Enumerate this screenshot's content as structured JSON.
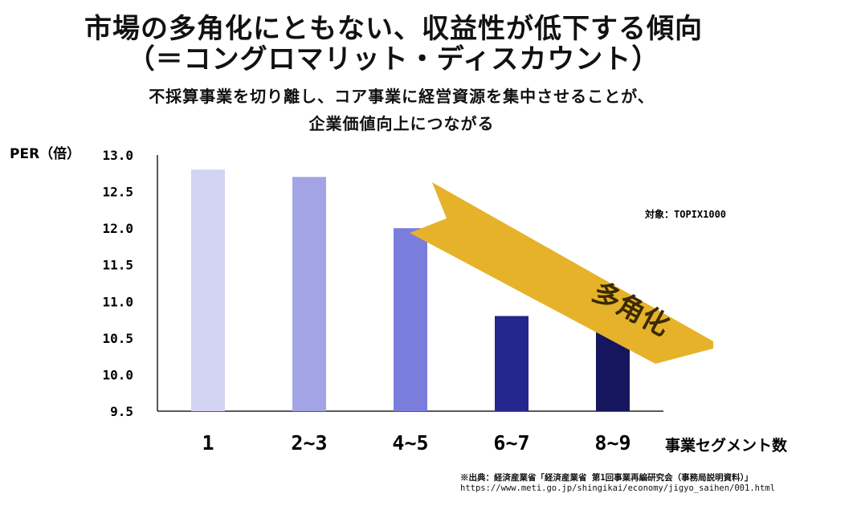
{
  "header": {
    "title_line1": "市場の多角化にともない、収益性が低下する傾向",
    "title_line2": "（＝コングロマリット・ディスカウント）",
    "subtitle_line1": "不採算事業を切り離し、コア事業に経営資源を集中させることが、",
    "subtitle_line2": "企業価値向上につながる"
  },
  "chart_data": {
    "type": "bar",
    "ylabel": "PER（倍）",
    "xlabel": "事業セグメント数",
    "categories": [
      "1",
      "2~3",
      "4~5",
      "6~7",
      "8~9"
    ],
    "values": [
      12.8,
      12.7,
      12.0,
      10.8,
      10.7
    ],
    "ylim": [
      9.5,
      13.0
    ],
    "yticks": [
      "13.0",
      "12.5",
      "12.0",
      "11.5",
      "11.0",
      "10.5",
      "10.0",
      "9.5"
    ],
    "bar_colors": [
      "#d3d3f3",
      "#a3a4e6",
      "#7b7ddc",
      "#25268e",
      "#15165e"
    ],
    "grid": false,
    "target_note": "対象：TOPIX1000",
    "arrow": {
      "label": "多角化",
      "color": "#e6b22a",
      "text_color": "#3a2a00"
    }
  },
  "footer": {
    "source_line1": "※出典：経済産業省「経済産業省 第1回事業再編研究会（事務局説明資料）」",
    "source_line2": "https://www.meti.go.jp/shingikai/economy/jigyo_saihen/001.html"
  }
}
